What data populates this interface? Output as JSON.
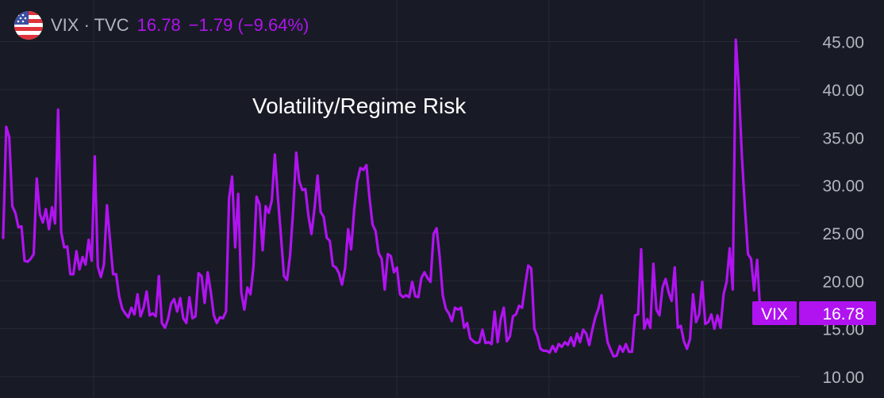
{
  "header": {
    "symbol": "VIX · TVC",
    "price": "16.78",
    "change": "−1.79 (−9.64%)"
  },
  "colors": {
    "background": "#181b25",
    "series": "#b013f0",
    "grid": "#262a36",
    "text": "#b2b5be"
  },
  "chart_data": {
    "type": "line",
    "title": "Volatility/Regime Risk",
    "ylim": [
      10,
      46
    ],
    "y_ticks": [
      "45.00",
      "40.00",
      "35.00",
      "30.00",
      "25.00",
      "20.00",
      "15.00",
      "10.00"
    ],
    "grid": true,
    "last_value_label": {
      "name": "VIX",
      "value": "16.78"
    },
    "series": [
      {
        "values": [
          24.5,
          36.1,
          35.0,
          27.8,
          27.1,
          25.6,
          25.7,
          22.1,
          22.0,
          22.3,
          22.8,
          30.7,
          27.0,
          26.1,
          27.5,
          25.4,
          27.7,
          26.0,
          37.9,
          25.1,
          23.5,
          23.6,
          20.7,
          20.7,
          23.1,
          21.2,
          22.5,
          21.7,
          24.3,
          22.1,
          33.0,
          21.5,
          20.4,
          21.7,
          27.9,
          24.3,
          20.7,
          20.7,
          18.4,
          17.1,
          16.6,
          16.2,
          17.2,
          16.5,
          18.6,
          16.3,
          17.2,
          18.9,
          16.4,
          16.6,
          16.3,
          20.5,
          15.6,
          15.1,
          16.0,
          17.6,
          18.1,
          16.8,
          18.2,
          16.1,
          15.6,
          18.3,
          16.1,
          16.3,
          20.8,
          20.5,
          17.7,
          20.9,
          18.9,
          16.4,
          15.6,
          16.2,
          16.1,
          16.8,
          28.6,
          30.9,
          23.5,
          29.1,
          18.8,
          17.0,
          19.3,
          18.6,
          21.5,
          28.8,
          28.0,
          23.2,
          27.8,
          27.1,
          28.4,
          33.2,
          28.7,
          24.7,
          20.5,
          20.1,
          22.7,
          27.4,
          33.4,
          30.4,
          29.5,
          29.6,
          26.8,
          24.9,
          27.6,
          31.0,
          27.2,
          26.7,
          24.5,
          24.2,
          21.6,
          21.4,
          20.8,
          19.6,
          21.3,
          25.4,
          23.3,
          27.5,
          30.4,
          31.8,
          31.6,
          32.1,
          28.7,
          25.9,
          25.2,
          22.9,
          22.3,
          19.1,
          22.8,
          22.6,
          20.9,
          21.4,
          18.6,
          18.3,
          18.5,
          18.3,
          19.9,
          18.4,
          18.3,
          20.3,
          20.9,
          20.3,
          19.9,
          24.9,
          25.5,
          22.5,
          18.5,
          17.1,
          16.6,
          15.8,
          17.2,
          17.0,
          17.2,
          15.1,
          15.6,
          14.0,
          13.7,
          13.5,
          13.6,
          14.9,
          13.5,
          13.6,
          13.4,
          16.8,
          13.6,
          16.0,
          17.2,
          13.7,
          14.2,
          16.3,
          16.5,
          17.4,
          17.2,
          19.5,
          21.6,
          21.3,
          15.0,
          14.2,
          12.9,
          12.7,
          12.7,
          12.5,
          13.2,
          12.6,
          13.4,
          13.1,
          13.6,
          13.3,
          14.1,
          13.2,
          14.5,
          13.6,
          14.9,
          14.5,
          13.3,
          14.9,
          16.2,
          17.1,
          18.5,
          15.8,
          13.6,
          12.8,
          12.1,
          12.2,
          13.2,
          12.6,
          13.4,
          12.6,
          12.6,
          16.4,
          16.5,
          23.3,
          15.0,
          16.0,
          15.1,
          21.8,
          17.0,
          16.4,
          19.3,
          20.2,
          18.8,
          17.9,
          21.4,
          15.1,
          15.3,
          13.7,
          12.9,
          13.9,
          18.6,
          15.7,
          16.5,
          19.9,
          15.5,
          15.7,
          16.5,
          15.0,
          16.4,
          15.1,
          18.6,
          19.9,
          23.4,
          19.1,
          45.2,
          40.2,
          33.0,
          27.6,
          22.8,
          22.3,
          19.0,
          22.2,
          16.8
        ]
      }
    ]
  }
}
